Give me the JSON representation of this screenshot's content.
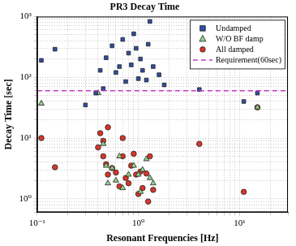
{
  "chart_data": {
    "type": "scatter",
    "title": "PR3 Decay Time",
    "x_label": "Resonant Frequencies [Hz]",
    "y_label": "Decay Time [sec]",
    "log": true,
    "grid": true,
    "legend": "upper right",
    "xlim": [
      0.1,
      30
    ],
    "ylim": [
      0.6,
      1000
    ],
    "xticks": [
      {
        "value": 0.1,
        "label": "10⁻¹"
      },
      {
        "value": 1,
        "label": "10⁰"
      },
      {
        "value": 10,
        "label": "10¹"
      }
    ],
    "yticks": [
      {
        "value": 1,
        "label": "10⁰"
      },
      {
        "value": 10,
        "label": "10¹"
      },
      {
        "value": 100,
        "label": "10²"
      },
      {
        "value": 1000,
        "label": "10³"
      }
    ],
    "series": [
      {
        "name": "Undamped",
        "color": "#2e4ea3",
        "marker": "square",
        "x": [
          0.11,
          0.15,
          0.3,
          0.38,
          0.42,
          0.45,
          0.48,
          0.55,
          0.6,
          0.65,
          0.7,
          0.75,
          0.8,
          0.85,
          0.9,
          0.95,
          1.0,
          1.05,
          1.1,
          1.2,
          1.25,
          1.3,
          1.4,
          1.6,
          1.8,
          4.0,
          11,
          15
        ],
        "values": [
          190,
          290,
          35,
          55,
          130,
          65,
          210,
          330,
          120,
          150,
          420,
          85,
          250,
          160,
          520,
          300,
          95,
          200,
          130,
          90,
          350,
          830,
          150,
          110,
          75,
          63,
          40,
          55
        ]
      },
      {
        "name": "W/O BF damp",
        "color": "#8fd08a",
        "marker": "triangle",
        "x": [
          0.11,
          0.4,
          0.45,
          0.48,
          0.5,
          0.55,
          0.6,
          0.65,
          0.7,
          0.8,
          0.9,
          1.0,
          1.05,
          1.1,
          1.2,
          1.3,
          1.4,
          15
        ],
        "values": [
          37,
          55,
          8,
          3.5,
          1.8,
          3.2,
          2,
          5,
          1.5,
          2.5,
          3.5,
          2.5,
          1.3,
          3,
          4.5,
          2.2,
          1.8,
          32
        ]
      },
      {
        "name": "All damped",
        "color": "#d8352b",
        "marker": "circle",
        "x": [
          0.11,
          0.15,
          0.4,
          0.42,
          0.45,
          0.45,
          0.48,
          0.5,
          0.5,
          0.55,
          0.6,
          0.65,
          0.7,
          0.7,
          0.75,
          0.8,
          0.85,
          0.9,
          0.95,
          1.0,
          1.05,
          1.1,
          1.2,
          1.25,
          1.3,
          1.4,
          4,
          11,
          15
        ],
        "values": [
          10,
          3.3,
          7,
          12,
          9,
          5,
          3.7,
          15,
          2.5,
          3.2,
          2.7,
          1.6,
          10,
          5,
          2.2,
          1.8,
          3.5,
          5.5,
          2.5,
          1.2,
          2.8,
          1.5,
          2.6,
          0.9,
          5,
          1.4,
          8,
          1.3,
          32
        ]
      },
      {
        "name": "Requirement(60sec)",
        "type": "line",
        "line_style": "dashed",
        "color": "#c43cc4",
        "x": [
          0.1,
          30
        ],
        "values": [
          60,
          60
        ]
      }
    ]
  }
}
